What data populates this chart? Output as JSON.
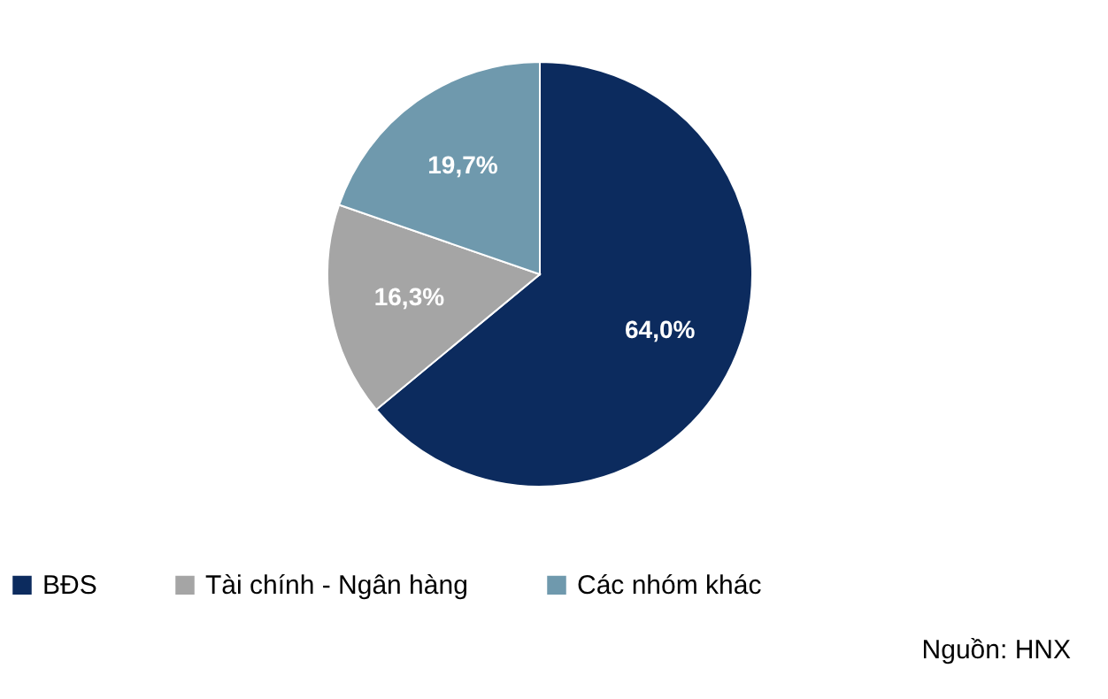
{
  "chart_data": {
    "type": "pie",
    "categories": [
      "BĐS",
      "Tài chính - Ngân hàng",
      "Các nhóm khác"
    ],
    "values": [
      64.0,
      16.3,
      19.7
    ],
    "colors": [
      "#0c2b5e",
      "#a5a5a5",
      "#6f99ad"
    ],
    "value_labels": [
      "64,0%",
      "16,3%",
      "19,7%"
    ],
    "legend": "bottom",
    "annotations": [
      "Nguồn: HNX"
    ]
  }
}
